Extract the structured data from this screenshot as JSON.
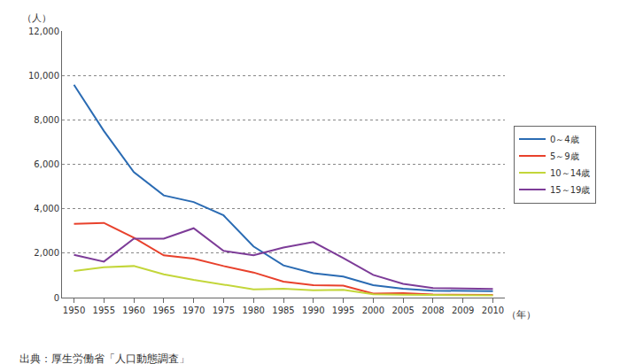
{
  "chart_data": {
    "type": "line",
    "y_label": "（人）",
    "x_label": "（年）",
    "source": "出典：厚生労働省「人口動態調査」",
    "categories": [
      "1950",
      "1955",
      "1960",
      "1965",
      "1970",
      "1975",
      "1980",
      "1985",
      "1990",
      "1995",
      "2000",
      "2005",
      "2008",
      "2009",
      "2010"
    ],
    "series": [
      {
        "name": "0～4歳",
        "color": "#2a6bb3",
        "values": [
          9580,
          7500,
          5650,
          4600,
          4300,
          3700,
          2300,
          1450,
          1100,
          950,
          560,
          400,
          310,
          290,
          290
        ]
      },
      {
        "name": "5～9歳",
        "color": "#e8412c",
        "values": [
          3320,
          3360,
          2700,
          1900,
          1750,
          1420,
          1130,
          720,
          560,
          540,
          180,
          200,
          140,
          120,
          120
        ]
      },
      {
        "name": "10～14歳",
        "color": "#c3d63a",
        "values": [
          1200,
          1370,
          1420,
          1050,
          800,
          570,
          370,
          400,
          330,
          350,
          150,
          130,
          120,
          100,
          100
        ]
      },
      {
        "name": "15～19歳",
        "color": "#7d3c98",
        "values": [
          1920,
          1620,
          2650,
          2650,
          3120,
          2100,
          1900,
          2250,
          2500,
          1780,
          1020,
          620,
          430,
          420,
          390
        ]
      }
    ],
    "ylim": [
      0,
      12000
    ],
    "yticks": [
      0,
      {
        "value": 2000,
        "label": "2,000"
      },
      {
        "value": 4000,
        "label": "4,000"
      },
      {
        "value": 6000,
        "label": "6,000"
      },
      {
        "value": 8000,
        "label": "8,000"
      },
      {
        "value": 10000,
        "label": "10,000"
      },
      {
        "value": 12000,
        "label": "12,000"
      }
    ],
    "grid": true,
    "legend": "right"
  }
}
